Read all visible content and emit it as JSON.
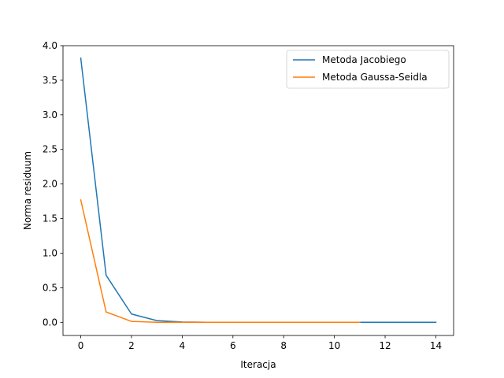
{
  "chart_data": {
    "type": "line",
    "title": "",
    "xlabel": "Iteracja",
    "ylabel": "Norma residuum",
    "xlim": [
      -0.7,
      14.7
    ],
    "ylim": [
      -0.19,
      4.0
    ],
    "xticks": [
      0,
      2,
      4,
      6,
      8,
      10,
      12,
      14
    ],
    "yticks": [
      0.0,
      0.5,
      1.0,
      1.5,
      2.0,
      2.5,
      3.0,
      3.5,
      4.0
    ],
    "xtick_labels": [
      "0",
      "2",
      "4",
      "6",
      "8",
      "10",
      "12",
      "14"
    ],
    "ytick_labels": [
      "0.0",
      "0.5",
      "1.0",
      "1.5",
      "2.0",
      "2.5",
      "3.0",
      "3.5",
      "4.0"
    ],
    "grid": false,
    "legend_position": "top-right",
    "series": [
      {
        "name": "Metoda Jacobiego",
        "color": "#1f77b4",
        "x": [
          0,
          1,
          2,
          3,
          4,
          5,
          6,
          7,
          8,
          9,
          10,
          11,
          12,
          13,
          14
        ],
        "y": [
          3.82,
          0.68,
          0.12,
          0.025,
          0.005,
          0.001,
          0.0003,
          0.0001,
          0.0,
          0.0,
          0.0,
          0.0,
          0.0,
          0.0,
          0.0
        ]
      },
      {
        "name": "Metoda Gaussa-Seidla",
        "color": "#ff7f0e",
        "x": [
          0,
          1,
          2,
          3,
          4,
          5,
          6,
          7,
          8,
          9,
          10,
          11
        ],
        "y": [
          1.77,
          0.15,
          0.013,
          0.001,
          0.0001,
          0.0,
          0.0,
          0.0,
          0.0,
          0.0,
          0.0,
          0.0
        ]
      }
    ]
  }
}
